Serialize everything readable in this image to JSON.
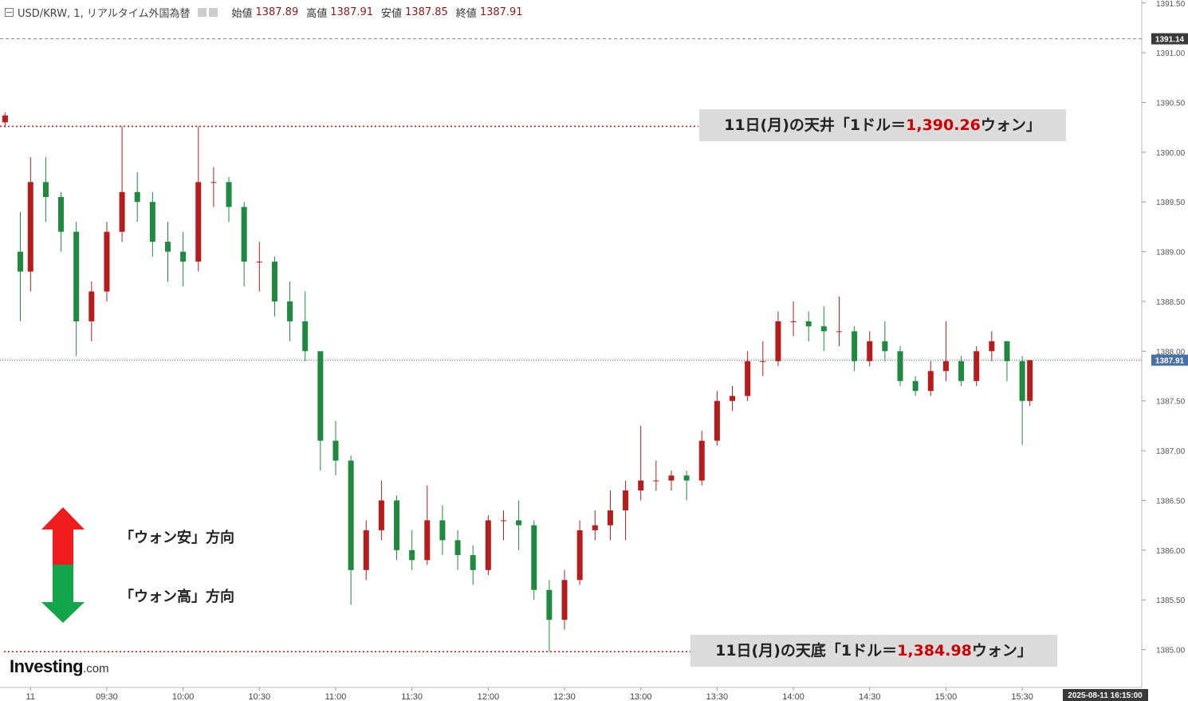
{
  "chart_data": {
    "type": "candlestick",
    "header": {
      "symbol": "USD/KRW, 1, リアルタイム外国為替",
      "fields": [
        {
          "label": "始値",
          "value": 1387.89
        },
        {
          "label": "高値",
          "value": 1387.91
        },
        {
          "label": "安値",
          "value": 1387.85
        },
        {
          "label": "終値",
          "value": 1387.91
        }
      ]
    },
    "x": [
      "08:50",
      "08:56",
      "09:00",
      "09:06",
      "09:12",
      "09:18",
      "09:24",
      "09:30",
      "09:36",
      "09:42",
      "09:48",
      "09:54",
      "10:00",
      "10:06",
      "10:12",
      "10:18",
      "10:24",
      "10:30",
      "10:36",
      "10:42",
      "10:48",
      "10:54",
      "11:00",
      "11:06",
      "11:12",
      "11:18",
      "11:24",
      "11:30",
      "11:36",
      "11:42",
      "11:48",
      "11:54",
      "12:00",
      "12:06",
      "12:12",
      "12:18",
      "12:24",
      "12:30",
      "12:36",
      "12:42",
      "12:48",
      "12:54",
      "13:00",
      "13:06",
      "13:12",
      "13:18",
      "13:24",
      "13:30",
      "13:36",
      "13:42",
      "13:48",
      "13:54",
      "14:00",
      "14:06",
      "14:12",
      "14:18",
      "14:24",
      "14:30",
      "14:36",
      "14:42",
      "14:48",
      "14:54",
      "15:00",
      "15:06",
      "15:12",
      "15:18",
      "15:24",
      "15:30",
      "15:33"
    ],
    "open": [
      1390.3,
      1389.0,
      1388.8,
      1389.7,
      1389.55,
      1389.2,
      1388.3,
      1388.6,
      1389.2,
      1389.6,
      1389.5,
      1389.1,
      1389.0,
      1388.9,
      1389.7,
      1389.7,
      1389.45,
      1388.9,
      1388.9,
      1388.5,
      1388.3,
      1388.0,
      1387.1,
      1386.9,
      1385.8,
      1386.2,
      1386.5,
      1386.0,
      1385.9,
      1386.3,
      1386.1,
      1385.95,
      1385.8,
      1386.3,
      1386.3,
      1386.25,
      1385.6,
      1385.3,
      1385.7,
      1386.2,
      1386.25,
      1386.4,
      1386.6,
      1386.7,
      1386.7,
      1386.75,
      1386.7,
      1387.1,
      1387.5,
      1387.55,
      1387.9,
      1387.9,
      1388.3,
      1388.3,
      1388.25,
      1388.2,
      1388.2,
      1387.9,
      1388.1,
      1388.0,
      1387.7,
      1387.6,
      1387.8,
      1387.9,
      1387.7,
      1388.0,
      1388.1,
      1387.9,
      1387.5
    ],
    "high": [
      1390.4,
      1389.4,
      1389.95,
      1389.95,
      1389.6,
      1389.3,
      1388.7,
      1389.3,
      1390.26,
      1389.8,
      1389.6,
      1389.3,
      1389.2,
      1390.26,
      1389.85,
      1389.75,
      1389.5,
      1389.1,
      1388.95,
      1388.7,
      1388.6,
      1388.0,
      1387.3,
      1386.95,
      1386.3,
      1386.7,
      1386.55,
      1386.2,
      1386.65,
      1386.45,
      1386.2,
      1386.05,
      1386.35,
      1386.4,
      1386.5,
      1386.3,
      1385.7,
      1385.8,
      1386.3,
      1386.4,
      1386.6,
      1386.7,
      1387.25,
      1386.9,
      1386.8,
      1386.8,
      1387.2,
      1387.6,
      1387.65,
      1388.0,
      1388.1,
      1388.4,
      1388.5,
      1388.4,
      1388.45,
      1388.55,
      1388.25,
      1388.2,
      1388.3,
      1388.05,
      1387.75,
      1387.9,
      1388.3,
      1387.95,
      1388.05,
      1388.2,
      1388.1,
      1387.95,
      1387.91
    ],
    "low": [
      1390.25,
      1388.3,
      1388.6,
      1389.3,
      1389.0,
      1387.95,
      1388.1,
      1388.5,
      1389.1,
      1389.3,
      1388.95,
      1388.7,
      1388.65,
      1388.8,
      1389.45,
      1389.3,
      1388.65,
      1388.6,
      1388.35,
      1388.1,
      1387.9,
      1386.8,
      1386.75,
      1385.45,
      1385.7,
      1386.1,
      1385.9,
      1385.8,
      1385.85,
      1385.95,
      1385.8,
      1385.65,
      1385.75,
      1386.1,
      1386.0,
      1385.5,
      1384.98,
      1385.2,
      1385.65,
      1386.1,
      1386.1,
      1386.1,
      1386.5,
      1386.6,
      1386.6,
      1386.5,
      1386.65,
      1387.05,
      1387.4,
      1387.5,
      1387.75,
      1387.85,
      1388.15,
      1388.1,
      1388.0,
      1388.05,
      1387.8,
      1387.85,
      1387.9,
      1387.65,
      1387.55,
      1387.55,
      1387.7,
      1387.65,
      1387.65,
      1387.9,
      1387.7,
      1387.06,
      1387.45
    ],
    "close": [
      1390.37,
      1388.8,
      1389.7,
      1389.55,
      1389.2,
      1388.3,
      1388.6,
      1389.2,
      1389.6,
      1389.5,
      1389.1,
      1389.0,
      1388.9,
      1389.7,
      1389.7,
      1389.45,
      1388.9,
      1388.9,
      1388.5,
      1388.3,
      1388.0,
      1387.1,
      1386.9,
      1385.8,
      1386.2,
      1386.5,
      1386.0,
      1385.9,
      1386.3,
      1386.1,
      1385.95,
      1385.8,
      1386.3,
      1386.3,
      1386.25,
      1385.6,
      1385.3,
      1385.7,
      1386.2,
      1386.25,
      1386.4,
      1386.6,
      1386.7,
      1386.7,
      1386.75,
      1386.7,
      1387.1,
      1387.5,
      1387.55,
      1387.9,
      1387.9,
      1388.3,
      1388.3,
      1388.25,
      1388.2,
      1388.2,
      1387.9,
      1388.1,
      1388.0,
      1387.7,
      1387.6,
      1387.8,
      1387.9,
      1387.7,
      1388.0,
      1388.1,
      1387.9,
      1387.5,
      1387.91
    ],
    "up_color": "#b71c1c",
    "down_color": "#1f8a3f",
    "xlim": [
      "08:48",
      "16:17"
    ],
    "xticks": [
      {
        "value": "09:00",
        "label": "11"
      },
      "09:30",
      "10:00",
      "10:30",
      "11:00",
      "11:30",
      "12:00",
      "12:30",
      "13:00",
      "13:30",
      "14:00",
      "14:30",
      "15:00",
      "15:30"
    ],
    "ylim": [
      1384.62,
      1391.53
    ],
    "yticks": [
      {
        "value": 1385,
        "label": "1385.00"
      },
      {
        "value": 1385.5,
        "label": "1385.50"
      },
      {
        "value": 1386,
        "label": "1386.00"
      },
      {
        "value": 1386.5,
        "label": "1386.50"
      },
      {
        "value": 1387,
        "label": "1387.00"
      },
      {
        "value": 1387.5,
        "label": "1387.50"
      },
      {
        "value": 1388,
        "label": "1388.00"
      },
      {
        "value": 1388.5,
        "label": "1388.50"
      },
      {
        "value": 1389,
        "label": "1389.00"
      },
      {
        "value": 1389.5,
        "label": "1389.50"
      },
      {
        "value": 1390,
        "label": "1390.00"
      },
      {
        "value": 1390.5,
        "label": "1390.50"
      },
      {
        "value": 1391,
        "label": "1391.00"
      },
      {
        "value": 1391.5,
        "label": "1391.50"
      }
    ],
    "marker_line": 1391.14,
    "last_price": 1387.91,
    "ceiling": {
      "text_before": "11日(月)の天井「1ドル＝",
      "value": 1390.26,
      "label": "1,390.26",
      "text_after": "ウォン」"
    },
    "floor": {
      "text_before": "11日(月)の天底「1ドル＝",
      "value": 1384.98,
      "label": "1,384.98",
      "text_after": "ウォン」"
    },
    "directions": {
      "up": "「ウォン安」方向",
      "down": "「ウォン高」方向"
    },
    "timestamp": "2025-08-11 16:15:00",
    "logo": {
      "name": "Investing",
      "suffix": ".com"
    }
  }
}
